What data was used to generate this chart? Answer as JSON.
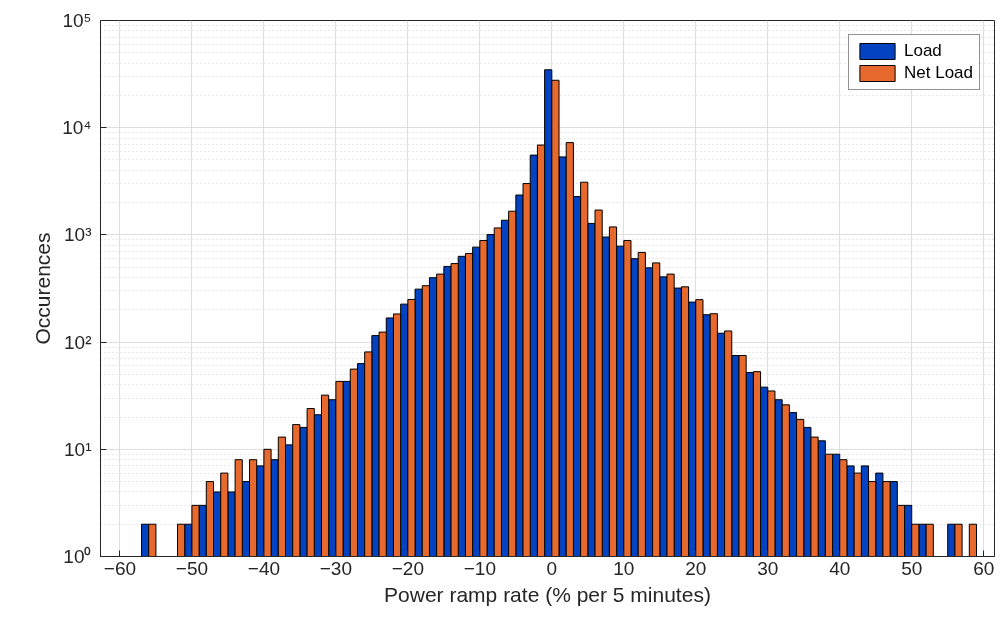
{
  "chart_data": {
    "type": "histogram",
    "xlabel": "Power ramp rate (% per 5 minutes)",
    "ylabel": "Occurences",
    "bins": [
      -57,
      -55,
      -53,
      -51,
      -49,
      -47,
      -45,
      -43,
      -41,
      -39,
      -37,
      -35,
      -33,
      -31,
      -29,
      -27,
      -25,
      -23,
      -21,
      -19,
      -17,
      -15,
      -13,
      -11,
      -9,
      -7,
      -5,
      -3,
      -1,
      1,
      3,
      5,
      7,
      9,
      11,
      13,
      15,
      17,
      19,
      21,
      23,
      25,
      27,
      29,
      31,
      33,
      35,
      37,
      39,
      41,
      43,
      45,
      47,
      49,
      51,
      53,
      55,
      57,
      59
    ],
    "series": [
      {
        "name": "Load",
        "color": "#0342c0",
        "values": [
          2,
          null,
          null,
          2,
          3,
          4,
          4,
          5,
          7,
          8,
          11,
          16,
          21,
          29,
          43,
          63,
          115,
          168,
          226,
          312,
          399,
          508,
          631,
          769,
          1007,
          1370,
          2355,
          5550,
          34700,
          5340,
          2280,
          1280,
          956,
          785,
          600,
          493,
          406,
          319,
          236,
          180,
          121,
          75,
          52,
          38,
          29,
          22,
          16,
          12,
          9,
          7,
          7,
          6,
          5,
          3,
          2,
          null,
          2,
          null
        ]
      },
      {
        "name": "Net Load",
        "color": "#e8692d",
        "values": [
          2,
          null,
          2,
          3,
          5,
          6,
          8,
          8,
          10,
          13,
          17,
          24,
          32,
          43,
          56,
          81,
          124,
          183,
          250,
          336,
          431,
          540,
          671,
          886,
          1161,
          1664,
          3013,
          6890,
          27700,
          7260,
          3100,
          1705,
          1187,
          886,
          686,
          548,
          431,
          328,
          249,
          184,
          127,
          75,
          53,
          35,
          26,
          19,
          13,
          9,
          8,
          6,
          5,
          5,
          3,
          2,
          2,
          null,
          2,
          2
        ]
      }
    ],
    "log": "y",
    "xlim": [
      -62.7,
      61.5
    ],
    "xticks": [
      -60,
      -50,
      -40,
      -30,
      -20,
      -10,
      0,
      10,
      20,
      30,
      40,
      50,
      60
    ],
    "ylim": [
      1,
      100000
    ],
    "yticks": [
      {
        "value": 1,
        "label": "10⁰"
      },
      {
        "value": 10,
        "label": "10¹"
      },
      {
        "value": 100,
        "label": "10²"
      },
      {
        "value": 1000,
        "label": "10³"
      },
      {
        "value": 10000,
        "label": "10⁴"
      },
      {
        "value": 100000,
        "label": "10⁵"
      }
    ],
    "grid": true,
    "legend": "top right"
  }
}
